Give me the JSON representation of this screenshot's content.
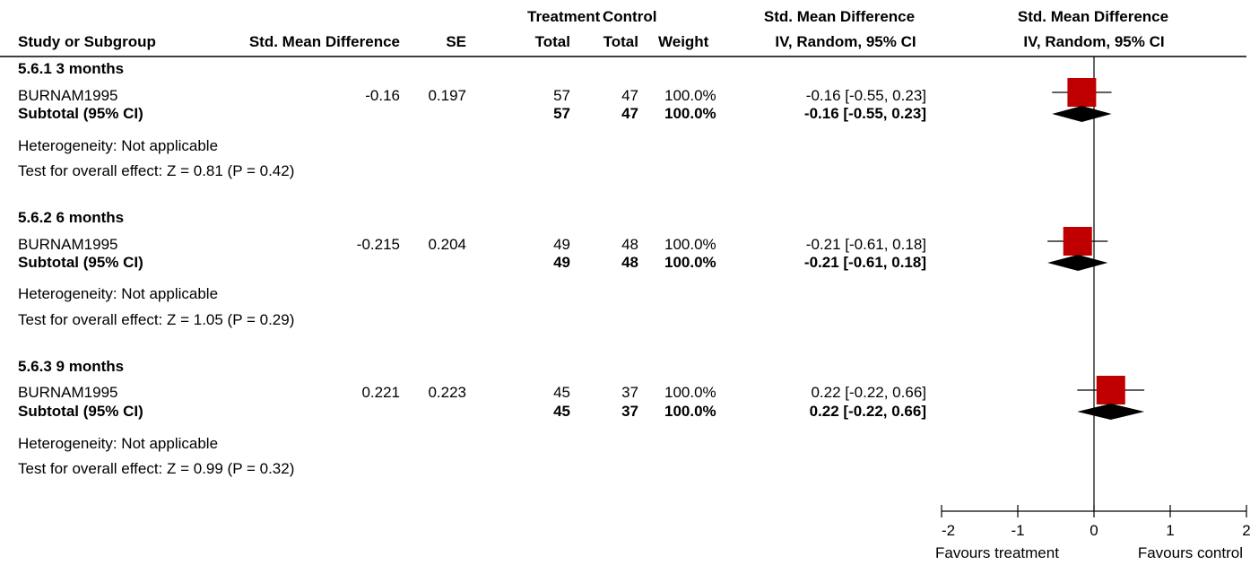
{
  "header": {
    "group_label_treatment": "Treatment",
    "group_label_control": "Control",
    "smd_top": "Std. Mean Difference",
    "plot_top": "Std. Mean Difference",
    "col_study": "Study or Subgroup",
    "col_smd": "Std. Mean Difference",
    "col_se": "SE",
    "col_total_t": "Total",
    "col_total_c": "Total",
    "col_weight": "Weight",
    "col_method": "IV, Random, 95% CI",
    "plot_method": "IV, Random, 95% CI"
  },
  "subgroups": [
    {
      "title": "5.6.1 3 months",
      "study": {
        "name": "BURNAM1995",
        "smd": "-0.16",
        "se": "0.197",
        "total_t": "57",
        "total_c": "47",
        "weight": "100.0%",
        "ci_text": "-0.16 [-0.55, 0.23]"
      },
      "subtotal": {
        "label": "Subtotal (95% CI)",
        "total_t": "57",
        "total_c": "47",
        "weight": "100.0%",
        "ci_text": "-0.16 [-0.55, 0.23]"
      },
      "heterogeneity": "Heterogeneity: Not applicable",
      "overall": "Test for overall effect: Z = 0.81 (P = 0.42)"
    },
    {
      "title": "5.6.2 6 months",
      "study": {
        "name": "BURNAM1995",
        "smd": "-0.215",
        "se": "0.204",
        "total_t": "49",
        "total_c": "48",
        "weight": "100.0%",
        "ci_text": "-0.21 [-0.61, 0.18]"
      },
      "subtotal": {
        "label": "Subtotal (95% CI)",
        "total_t": "49",
        "total_c": "48",
        "weight": "100.0%",
        "ci_text": "-0.21 [-0.61, 0.18]"
      },
      "heterogeneity": "Heterogeneity: Not applicable",
      "overall": "Test for overall effect: Z = 1.05 (P = 0.29)"
    },
    {
      "title": "5.6.3 9 months",
      "study": {
        "name": "BURNAM1995",
        "smd": "0.221",
        "se": "0.223",
        "total_t": "45",
        "total_c": "37",
        "weight": "100.0%",
        "ci_text": "0.22 [-0.22, 0.66]"
      },
      "subtotal": {
        "label": "Subtotal (95% CI)",
        "total_t": "45",
        "total_c": "37",
        "weight": "100.0%",
        "ci_text": "0.22 [-0.22, 0.66]"
      },
      "heterogeneity": "Heterogeneity: Not applicable",
      "overall": "Test for overall effect: Z = 0.99 (P = 0.32)"
    }
  ],
  "chart_data": {
    "type": "forest",
    "xlim": [
      -2,
      2
    ],
    "ticks": [
      "-2",
      "-1",
      "0",
      "1",
      "2"
    ],
    "tick_values": [
      -2,
      -1,
      0,
      1,
      2
    ],
    "favours_left": "Favours treatment",
    "favours_right": "Favours control",
    "studies": [
      {
        "smd": -0.16,
        "lo": -0.55,
        "hi": 0.23,
        "weight": 100.0
      },
      {
        "smd": -0.215,
        "lo": -0.61,
        "hi": 0.18,
        "weight": 100.0
      },
      {
        "smd": 0.221,
        "lo": -0.22,
        "hi": 0.66,
        "weight": 100.0
      }
    ],
    "subtotals": [
      {
        "smd": -0.16,
        "lo": -0.55,
        "hi": 0.23
      },
      {
        "smd": -0.21,
        "lo": -0.61,
        "hi": 0.18
      },
      {
        "smd": 0.22,
        "lo": -0.22,
        "hi": 0.66
      }
    ],
    "colors": {
      "square": "#c00000",
      "diamond": "#000000",
      "axis": "#000000"
    }
  }
}
